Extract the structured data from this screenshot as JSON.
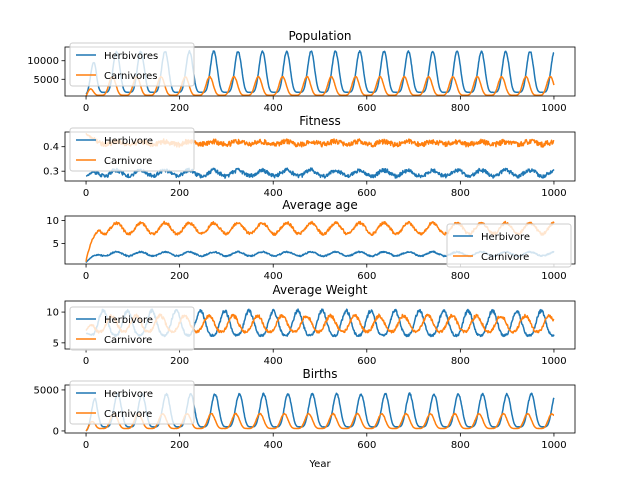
{
  "chart_data": [
    {
      "type": "line",
      "title": "Population",
      "xlabel": "",
      "ylabel": "",
      "xlim": [
        -45,
        1045
      ],
      "ylim": [
        500,
        13700
      ],
      "xticks": [
        0,
        200,
        400,
        600,
        800,
        1000
      ],
      "yticks": [
        5000,
        10000
      ],
      "legend": "top-left",
      "series": [
        {
          "name": "Herbivores",
          "color": "#1f77b4",
          "pattern": {
            "type": "osc",
            "start": 1000,
            "base": 1500,
            "amp": 11000,
            "period": 52,
            "phase": 0,
            "sharp": 2.5,
            "jitter": 0.02,
            "seed": 11
          }
        },
        {
          "name": "Carnivores",
          "color": "#ff7f0e",
          "pattern": {
            "type": "osc",
            "start": 500,
            "base": 700,
            "amp": 5000,
            "period": 52,
            "phase": 0.17,
            "sharp": 2.5,
            "jitter": 0.02,
            "seed": 23
          }
        }
      ]
    },
    {
      "type": "line",
      "title": "Fitness",
      "xlabel": "",
      "ylabel": "",
      "xlim": [
        -45,
        1045
      ],
      "ylim": [
        0.26,
        0.46
      ],
      "xticks": [
        0,
        200,
        400,
        600,
        800,
        1000
      ],
      "yticks": [
        0.3,
        0.4
      ],
      "legend": "top-left",
      "series": [
        {
          "name": "Herbivore",
          "color": "#1f77b4",
          "pattern": {
            "type": "noise",
            "level": 0.292,
            "amp": 0.012,
            "period": 52,
            "jitter": 0.008,
            "start": 0.28,
            "seed": 37
          }
        },
        {
          "name": "Carnivore",
          "color": "#ff7f0e",
          "pattern": {
            "type": "noise",
            "level": 0.415,
            "amp": 0.006,
            "period": 52,
            "jitter": 0.01,
            "start": 0.455,
            "seed": 41
          }
        }
      ]
    },
    {
      "type": "line",
      "title": "Average age",
      "xlabel": "",
      "ylabel": "",
      "xlim": [
        -45,
        1045
      ],
      "ylim": [
        0.5,
        11
      ],
      "xticks": [
        0,
        200,
        400,
        600,
        800,
        1000
      ],
      "yticks": [
        5,
        10
      ],
      "legend": "bottom-right",
      "series": [
        {
          "name": "Herbivore",
          "color": "#1f77b4",
          "pattern": {
            "type": "noise",
            "level": 2.7,
            "amp": 0.45,
            "period": 52,
            "jitter": 0.15,
            "start": 0.8,
            "seed": 53
          }
        },
        {
          "name": "Carnivore",
          "color": "#ff7f0e",
          "pattern": {
            "type": "noise",
            "level": 8.3,
            "amp": 1.2,
            "period": 52,
            "jitter": 0.3,
            "start": 1.0,
            "seed": 59
          }
        }
      ]
    },
    {
      "type": "line",
      "title": "Average Weight",
      "xlabel": "",
      "ylabel": "",
      "xlim": [
        -45,
        1045
      ],
      "ylim": [
        4,
        11.8
      ],
      "xticks": [
        0,
        200,
        400,
        600,
        800,
        1000
      ],
      "yticks": [
        5,
        10
      ],
      "legend": "bottom-left",
      "series": [
        {
          "name": "Herbivore",
          "color": "#1f77b4",
          "pattern": {
            "type": "osc",
            "start": 6.5,
            "base": 6.2,
            "amp": 4.0,
            "period": 52,
            "phase": 0.55,
            "sharp": 1.4,
            "jitter": 0.03,
            "seed": 61
          }
        },
        {
          "name": "Carnivore",
          "color": "#ff7f0e",
          "pattern": {
            "type": "osc",
            "start": 7.0,
            "base": 6.8,
            "amp": 2.6,
            "period": 52,
            "phase": 0.2,
            "sharp": 1.2,
            "jitter": 0.03,
            "seed": 67
          }
        }
      ]
    },
    {
      "type": "line",
      "title": "Births",
      "xlabel": "Year",
      "ylabel": "",
      "xlim": [
        -45,
        1045
      ],
      "ylim": [
        -250,
        5600
      ],
      "xticks": [
        0,
        200,
        400,
        600,
        800,
        1000
      ],
      "yticks": [
        0,
        5000
      ],
      "legend": "top-left",
      "series": [
        {
          "name": "Herbivore",
          "color": "#1f77b4",
          "pattern": {
            "type": "osc",
            "start": 0,
            "base": 500,
            "amp": 4000,
            "period": 52,
            "phase": 0.95,
            "sharp": 2.2,
            "jitter": 0.03,
            "seed": 71
          }
        },
        {
          "name": "Carnivore",
          "color": "#ff7f0e",
          "pattern": {
            "type": "osc",
            "start": 0,
            "base": 300,
            "amp": 1800,
            "period": 52,
            "phase": 0.1,
            "sharp": 2.2,
            "jitter": 0.03,
            "seed": 73
          }
        }
      ]
    }
  ]
}
